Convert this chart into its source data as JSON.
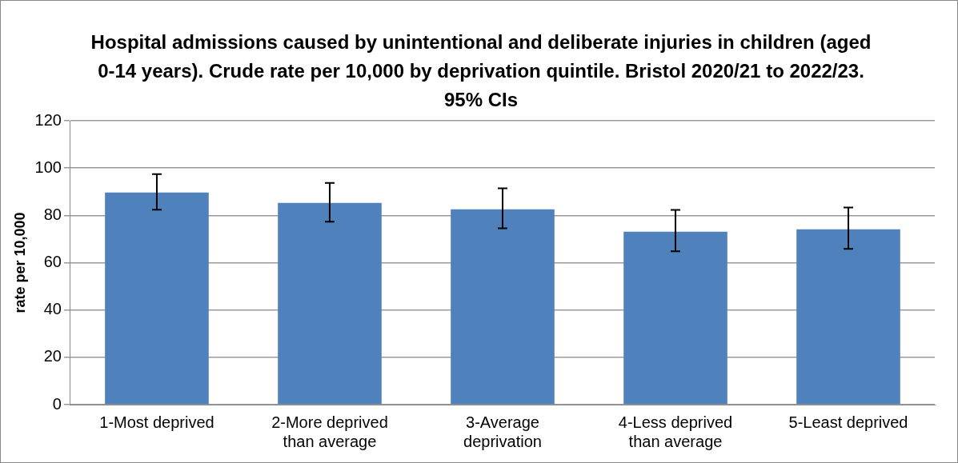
{
  "chart_data": {
    "type": "bar",
    "title": "Hospital admissions caused by unintentional and deliberate injuries in children (aged 0-14 years). Crude rate per 10,000 by deprivation quintile. Bristol 2020/21 to 2022/23. 95% CIs",
    "ylabel": "rate per 10,000",
    "categories": [
      "1-Most deprived",
      "2-More deprived than average",
      "3-Average deprivation",
      "4-Less deprived than average",
      "5-Least deprived"
    ],
    "series": [
      {
        "color": "#4f81bd",
        "values": [
          89.7,
          85.3,
          82.6,
          73.1,
          74.1
        ],
        "errors": [
          [
            82.4,
            97.4
          ],
          [
            77.3,
            93.7
          ],
          [
            74.5,
            91.4
          ],
          [
            64.8,
            82.3
          ],
          [
            65.8,
            83.3
          ]
        ]
      }
    ],
    "ylim": [
      0,
      120
    ],
    "yticks": [
      0,
      20,
      40,
      60,
      80,
      100,
      120
    ],
    "grid": "y",
    "legend": false
  }
}
